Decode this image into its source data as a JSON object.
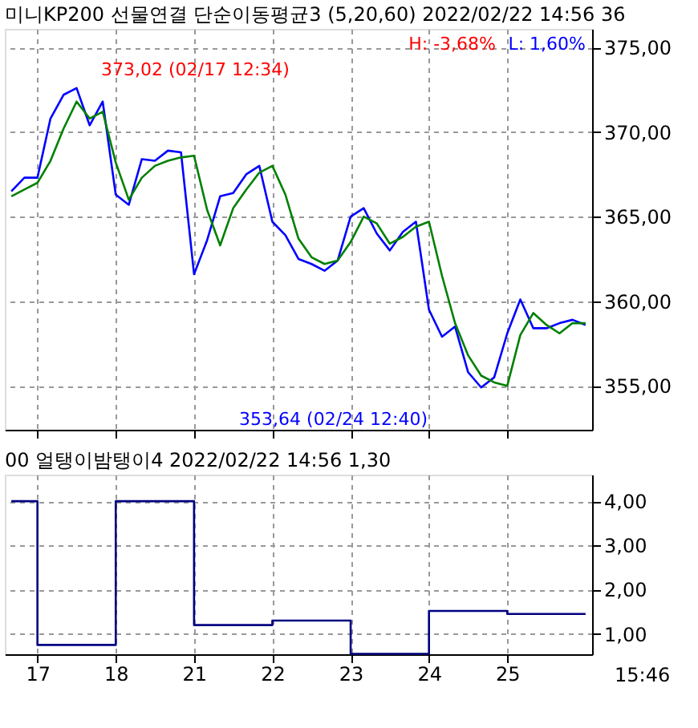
{
  "chart_data": [
    {
      "type": "line",
      "title": "미니KP200 선물연결 단순이동평균3  (5,20,60) 2022/02/22 14:56 36",
      "annotations": [
        "373,02 (02/17 12:34)",
        "353,64 (02/24 12:40)",
        "H: -3,68%",
        "L: 1,60%"
      ],
      "categories": [
        null,
        null,
        "17",
        null,
        null,
        null,
        null,
        null,
        "18",
        null,
        null,
        null,
        null,
        null,
        "21",
        null,
        null,
        null,
        null,
        null,
        "22",
        null,
        null,
        null,
        null,
        null,
        "23",
        null,
        null,
        null,
        null,
        null,
        "24",
        null,
        null,
        null,
        null,
        null,
        "25",
        null,
        null,
        null,
        null,
        null,
        null
      ],
      "ylim": [
        352.4,
        376.1
      ],
      "yticks": [
        {
          "value": 355,
          "label": "355,00"
        },
        {
          "value": 360,
          "label": "360,00"
        },
        {
          "value": 365,
          "label": "365,00"
        },
        {
          "value": 370,
          "label": "370,00"
        },
        {
          "value": 375,
          "label": "375,00"
        }
      ],
      "grid": true,
      "tick_labels": "y",
      "line_style": "solid",
      "marker": "none",
      "series": [
        {
          "color": "#0000ff",
          "values": [
            366.5,
            367.3,
            367.3,
            370.8,
            372.2,
            372.6,
            370.4,
            371.8,
            366.3,
            365.7,
            368.4,
            368.3,
            368.9,
            368.8,
            361.6,
            363.6,
            366.2,
            366.4,
            367.5,
            368.0,
            364.7,
            363.9,
            362.5,
            362.2,
            361.8,
            362.4,
            365.0,
            365.5,
            364.0,
            363.0,
            364.1,
            364.7,
            359.5,
            357.9,
            358.5,
            355.8,
            354.9,
            355.5,
            358.1,
            360.1,
            358.4,
            358.4,
            358.7,
            358.9,
            358.6
          ]
        },
        {
          "color": "#008000",
          "values": [
            366.2,
            366.6,
            367.0,
            368.3,
            370.2,
            371.8,
            370.8,
            371.2,
            368.2,
            366.0,
            367.3,
            368.0,
            368.3,
            368.5,
            368.6,
            365.4,
            363.3,
            365.5,
            366.6,
            367.6,
            368.0,
            366.3,
            363.7,
            362.6,
            362.2,
            362.4,
            363.5,
            365.0,
            364.6,
            363.4,
            363.8,
            364.4,
            364.7,
            361.5,
            358.7,
            356.8,
            355.6,
            355.2,
            355.0,
            358.0,
            359.3,
            358.6,
            358.1,
            358.7,
            358.7
          ]
        }
      ]
    },
    {
      "type": "step",
      "title": "00 얼탱이밤탱이4  2022/02/22 14:56 1,30",
      "annotations": [
        "15:46"
      ],
      "categories": [
        null,
        null,
        "17",
        null,
        null,
        null,
        null,
        null,
        "18",
        null,
        null,
        null,
        null,
        null,
        "21",
        null,
        null,
        null,
        null,
        null,
        "22",
        null,
        null,
        null,
        null,
        null,
        "23",
        null,
        null,
        null,
        null,
        null,
        "24",
        null,
        null,
        null,
        null,
        null,
        "25",
        null,
        null,
        null,
        null,
        null,
        null
      ],
      "ylim": [
        0.54,
        4.6
      ],
      "yticks": [
        {
          "value": 1,
          "label": "1,00"
        },
        {
          "value": 2,
          "label": "2,00"
        },
        {
          "value": 3,
          "label": "3,00"
        },
        {
          "value": 4,
          "label": "4,00"
        }
      ],
      "grid": true,
      "line_style": "solid",
      "marker": "none",
      "series": [
        {
          "color": "#000080",
          "values": [
            4.0,
            4.0,
            0.75,
            0.75,
            0.75,
            0.75,
            0.75,
            0.75,
            4.0,
            4.0,
            4.0,
            4.0,
            4.0,
            4.0,
            1.2,
            1.2,
            1.2,
            1.2,
            1.2,
            1.2,
            1.3,
            1.3,
            1.3,
            1.3,
            1.3,
            1.3,
            0.55,
            0.55,
            0.55,
            0.55,
            0.55,
            0.55,
            1.52,
            1.52,
            1.52,
            1.52,
            1.52,
            1.52,
            1.45,
            1.45,
            1.45,
            1.45,
            1.45,
            1.45,
            1.45
          ]
        }
      ]
    }
  ]
}
